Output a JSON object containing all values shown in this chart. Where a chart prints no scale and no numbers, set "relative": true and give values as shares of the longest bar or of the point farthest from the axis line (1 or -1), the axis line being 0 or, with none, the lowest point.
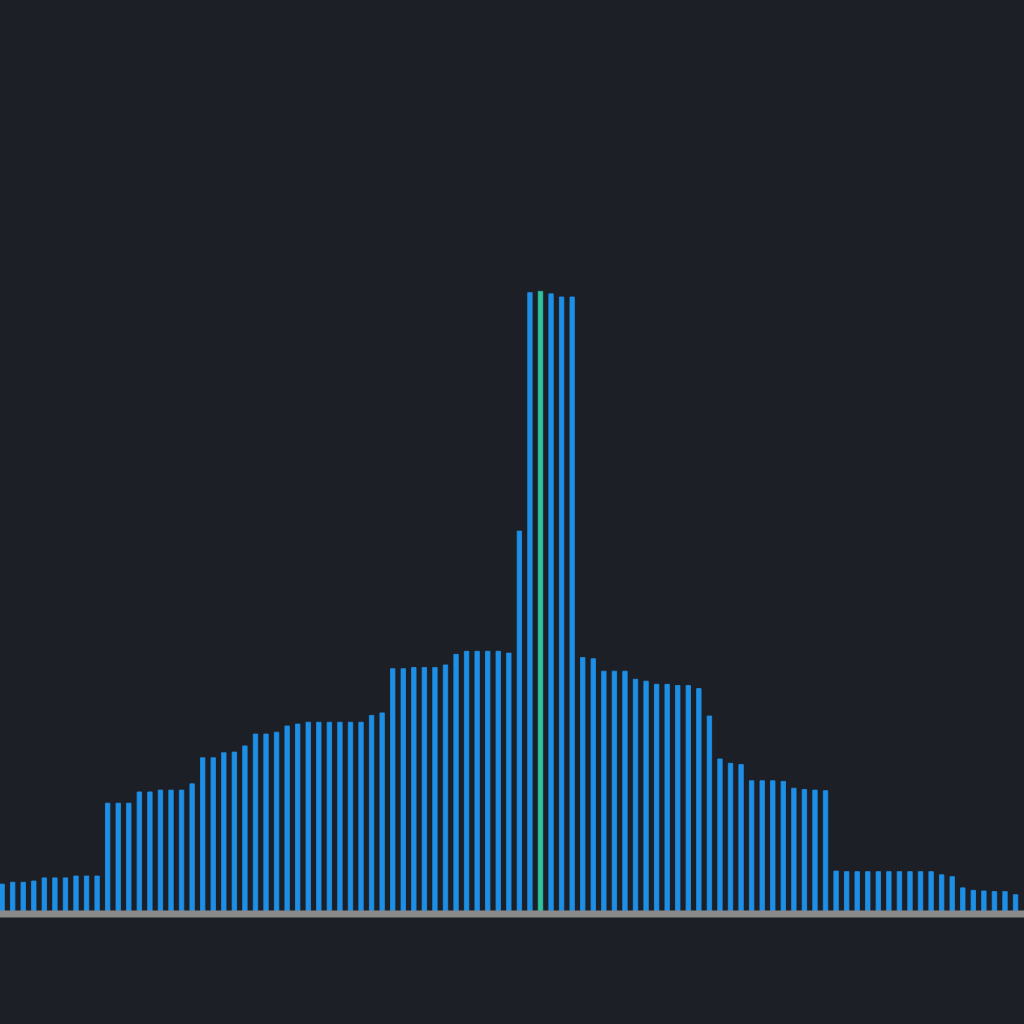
{
  "chart_data": {
    "type": "bar",
    "relative": true,
    "categories": [
      null,
      null,
      null,
      null,
      null,
      null,
      null,
      null,
      null,
      null,
      null,
      null,
      null,
      null,
      null,
      null,
      null,
      null,
      null,
      null,
      null,
      null,
      null,
      null,
      null,
      null,
      null,
      null,
      null,
      null,
      null,
      null,
      null,
      null,
      null,
      null,
      null,
      null,
      null,
      null,
      null,
      null,
      null,
      null,
      null,
      null,
      null,
      null,
      null,
      null,
      null,
      null,
      null,
      null,
      null,
      null,
      null,
      null,
      null,
      null,
      null,
      null,
      null,
      null,
      null,
      null,
      null,
      null,
      null,
      null,
      null,
      null,
      null,
      null,
      null,
      null,
      null,
      null,
      null,
      null,
      null,
      null,
      null,
      null,
      null,
      null,
      null,
      null,
      null,
      null,
      null,
      null,
      null,
      null,
      null,
      null,
      null
    ],
    "values": [
      0.048,
      0.051,
      0.051,
      0.053,
      0.058,
      0.058,
      0.058,
      0.061,
      0.061,
      0.061,
      0.178,
      0.178,
      0.178,
      0.196,
      0.196,
      0.199,
      0.199,
      0.199,
      0.209,
      0.251,
      0.251,
      0.259,
      0.26,
      0.27,
      0.289,
      0.289,
      0.292,
      0.302,
      0.305,
      0.308,
      0.308,
      0.308,
      0.308,
      0.308,
      0.308,
      0.319,
      0.323,
      0.394,
      0.394,
      0.396,
      0.396,
      0.396,
      0.4,
      0.417,
      0.422,
      0.422,
      0.422,
      0.422,
      0.419,
      0.615,
      0.998,
      1.0,
      0.996,
      0.991,
      0.991,
      0.412,
      0.41,
      0.39,
      0.39,
      0.39,
      0.377,
      0.374,
      0.369,
      0.369,
      0.367,
      0.367,
      0.362,
      0.318,
      0.249,
      0.242,
      0.24,
      0.214,
      0.214,
      0.214,
      0.213,
      0.202,
      0.2,
      0.199,
      0.198,
      0.069,
      0.068,
      0.068,
      0.068,
      0.068,
      0.068,
      0.068,
      0.068,
      0.068,
      0.068,
      0.063,
      0.06,
      0.042,
      0.038,
      0.037,
      0.036,
      0.036,
      0.031
    ],
    "colors": [
      "#1e8fe6",
      "#1e8fe6",
      "#1e8fe6",
      "#1e8fe6",
      "#1e8fe6",
      "#1e8fe6",
      "#1e8fe6",
      "#1e8fe6",
      "#1e8fe6",
      "#1e8fe6",
      "#1e8fe6",
      "#1e8fe6",
      "#1e8fe6",
      "#1e8fe6",
      "#1e8fe6",
      "#1e8fe6",
      "#1e8fe6",
      "#1e8fe6",
      "#1e8fe6",
      "#1e8fe6",
      "#1e8fe6",
      "#1e8fe6",
      "#1e8fe6",
      "#1e8fe6",
      "#1e8fe6",
      "#1e8fe6",
      "#1e8fe6",
      "#1e8fe6",
      "#1e8fe6",
      "#1e8fe6",
      "#1e8fe6",
      "#1e8fe6",
      "#1e8fe6",
      "#1e8fe6",
      "#1e8fe6",
      "#1e8fe6",
      "#1e8fe6",
      "#1e8fe6",
      "#1e8fe6",
      "#1e8fe6",
      "#1e8fe6",
      "#1e8fe6",
      "#1e8fe6",
      "#1e8fe6",
      "#1e8fe6",
      "#1e8fe6",
      "#1e8fe6",
      "#1e8fe6",
      "#1e8fe6",
      "#1e8fe6",
      "#1e8fe6",
      "#2ec4a0",
      "#1e8fe6",
      "#1e8fe6",
      "#1e8fe6",
      "#1e8fe6",
      "#1e8fe6",
      "#1e8fe6",
      "#1e8fe6",
      "#1e8fe6",
      "#1e8fe6",
      "#1e8fe6",
      "#1e8fe6",
      "#1e8fe6",
      "#1e8fe6",
      "#1e8fe6",
      "#1e8fe6",
      "#1e8fe6",
      "#1e8fe6",
      "#1e8fe6",
      "#1e8fe6",
      "#1e8fe6",
      "#1e8fe6",
      "#1e8fe6",
      "#1e8fe6",
      "#1e8fe6",
      "#1e8fe6",
      "#1e8fe6",
      "#1e8fe6",
      "#1e8fe6",
      "#1e8fe6",
      "#1e8fe6",
      "#1e8fe6",
      "#1e8fe6",
      "#1e8fe6",
      "#1e8fe6",
      "#1e8fe6",
      "#1e8fe6",
      "#1e8fe6",
      "#1e8fe6",
      "#1e8fe6",
      "#1e8fe6",
      "#1e8fe6",
      "#1e8fe6",
      "#1e8fe6",
      "#1e8fe6",
      "#1e8fe6"
    ]
  }
}
